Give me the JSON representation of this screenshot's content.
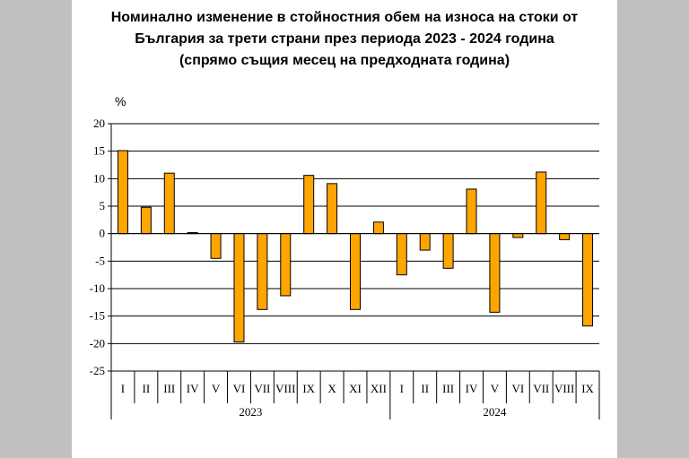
{
  "chart_data": {
    "type": "bar",
    "title_lines": [
      "Номинално изменение в стойностния обем на износа на стоки от",
      "България за трети страни през периода 2023 - 2024 година",
      "(спрямо същия месец на предходната година)"
    ],
    "ylabel": "%",
    "ylim": [
      -25,
      20
    ],
    "yticks": [
      20,
      15,
      10,
      5,
      0,
      -5,
      -10,
      -15,
      -20,
      -25
    ],
    "grid": true,
    "bar_color": "#ffa500",
    "categories": [
      "I",
      "II",
      "III",
      "IV",
      "V",
      "VI",
      "VII",
      "VIII",
      "IX",
      "X",
      "XI",
      "XII",
      "I",
      "II",
      "III",
      "IV",
      "V",
      "VI",
      "VII",
      "VIII",
      "IX"
    ],
    "groups": [
      {
        "label": "2023",
        "count": 12
      },
      {
        "label": "2024",
        "count": 9
      }
    ],
    "values": [
      15.1,
      4.8,
      11.0,
      0.2,
      -4.5,
      -19.7,
      -13.8,
      -11.3,
      10.6,
      9.1,
      -13.8,
      2.1,
      -7.5,
      -3.0,
      -6.3,
      8.1,
      -14.3,
      -0.7,
      11.2,
      -1.1,
      -16.8
    ]
  }
}
